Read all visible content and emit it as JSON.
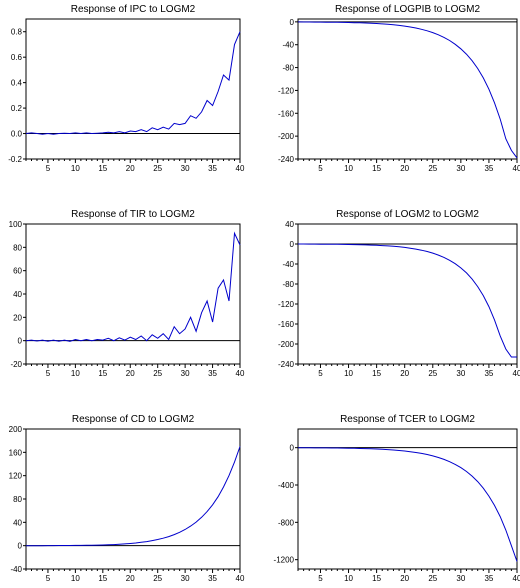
{
  "chart_data": [
    {
      "type": "line",
      "title": "Response of IPC to LOGM2",
      "xlim": [
        1,
        40
      ],
      "ylim": [
        -0.2,
        0.9
      ],
      "yticks": [
        "-0.2",
        "0.0",
        "0.2",
        "0.4",
        "0.6",
        "0.8"
      ],
      "ytick_values": [
        -0.2,
        0.0,
        0.2,
        0.4,
        0.6,
        0.8
      ],
      "xticks": [
        "5",
        "10",
        "15",
        "20",
        "25",
        "30",
        "35",
        "40"
      ],
      "xtick_values": [
        5,
        10,
        15,
        20,
        25,
        30,
        35,
        40
      ],
      "zero_line": true,
      "series_color": "#0000cc",
      "x": [
        1,
        2,
        3,
        4,
        5,
        6,
        7,
        8,
        9,
        10,
        11,
        12,
        13,
        14,
        15,
        16,
        17,
        18,
        19,
        20,
        21,
        22,
        23,
        24,
        25,
        26,
        27,
        28,
        29,
        30,
        31,
        32,
        33,
        34,
        35,
        36,
        37,
        38,
        39,
        40
      ],
      "values": [
        0.0,
        0.005,
        0.0,
        -0.005,
        0.0,
        -0.005,
        0.0,
        0.003,
        0.0,
        0.005,
        0.0,
        0.005,
        0.0,
        0.003,
        0.005,
        0.01,
        0.005,
        0.015,
        0.005,
        0.02,
        0.015,
        0.03,
        0.015,
        0.045,
        0.03,
        0.05,
        0.035,
        0.08,
        0.07,
        0.08,
        0.14,
        0.12,
        0.17,
        0.26,
        0.22,
        0.33,
        0.46,
        0.42,
        0.7,
        0.8
      ]
    },
    {
      "type": "line",
      "title": "Response of LOGPIB to LOGM2",
      "xlim": [
        1,
        40
      ],
      "ylim": [
        -240,
        5
      ],
      "yticks": [
        "-240",
        "-200",
        "-160",
        "-120",
        "-80",
        "-40",
        "0"
      ],
      "ytick_values": [
        -240,
        -200,
        -160,
        -120,
        -80,
        -40,
        0
      ],
      "xticks": [
        "5",
        "10",
        "15",
        "20",
        "25",
        "30",
        "35",
        "40"
      ],
      "xtick_values": [
        5,
        10,
        15,
        20,
        25,
        30,
        35,
        40
      ],
      "zero_line": true,
      "series_color": "#0000cc",
      "x": [
        1,
        2,
        3,
        4,
        5,
        6,
        7,
        8,
        9,
        10,
        11,
        12,
        13,
        14,
        15,
        16,
        17,
        18,
        19,
        20,
        21,
        22,
        23,
        24,
        25,
        26,
        27,
        28,
        29,
        30,
        31,
        32,
        33,
        34,
        35,
        36,
        37,
        38,
        39,
        40
      ],
      "values": [
        0,
        -0.2,
        -0.3,
        -0.4,
        -0.5,
        -0.6,
        -0.7,
        -0.8,
        -1.0,
        -1.2,
        -1.4,
        -1.7,
        -2.0,
        -2.4,
        -2.9,
        -3.5,
        -4.2,
        -5.1,
        -6.2,
        -7.4,
        -9.0,
        -10.8,
        -13.0,
        -15.6,
        -18.8,
        -22.6,
        -27.2,
        -32.6,
        -39.2,
        -47.1,
        -56.6,
        -68.0,
        -81.7,
        -98.1,
        -117.9,
        -141.6,
        -170.1,
        -204.4,
        -225.0,
        -238.0
      ]
    },
    {
      "type": "line",
      "title": "Response of TIR to LOGM2",
      "xlim": [
        1,
        40
      ],
      "ylim": [
        -20,
        100
      ],
      "yticks": [
        "-20",
        "0",
        "20",
        "40",
        "60",
        "80",
        "100"
      ],
      "ytick_values": [
        -20,
        0,
        20,
        40,
        60,
        80,
        100
      ],
      "xticks": [
        "5",
        "10",
        "15",
        "20",
        "25",
        "30",
        "35",
        "40"
      ],
      "xtick_values": [
        5,
        10,
        15,
        20,
        25,
        30,
        35,
        40
      ],
      "zero_line": true,
      "series_color": "#0000cc",
      "x": [
        1,
        2,
        3,
        4,
        5,
        6,
        7,
        8,
        9,
        10,
        11,
        12,
        13,
        14,
        15,
        16,
        17,
        18,
        19,
        20,
        21,
        22,
        23,
        24,
        25,
        26,
        27,
        28,
        29,
        30,
        31,
        32,
        33,
        34,
        35,
        36,
        37,
        38,
        39,
        40
      ],
      "values": [
        0,
        0.5,
        -0.3,
        0.5,
        -0.5,
        0.5,
        -0.5,
        0.5,
        -0.5,
        1,
        0,
        1,
        0,
        1,
        0.5,
        2,
        0,
        2.5,
        0.5,
        3,
        1,
        4,
        0,
        5,
        2,
        6,
        1,
        12,
        6,
        10,
        20,
        8,
        24,
        34,
        16,
        45,
        52,
        34,
        92,
        82
      ]
    },
    {
      "type": "line",
      "title": "Response of LOGM2 to LOGM2",
      "xlim": [
        1,
        40
      ],
      "ylim": [
        -240,
        40
      ],
      "yticks": [
        "-240",
        "-200",
        "-160",
        "-120",
        "-80",
        "-40",
        "0",
        "40"
      ],
      "ytick_values": [
        -240,
        -200,
        -160,
        -120,
        -80,
        -40,
        0,
        40
      ],
      "xticks": [
        "5",
        "10",
        "15",
        "20",
        "25",
        "30",
        "35",
        "40"
      ],
      "xtick_values": [
        5,
        10,
        15,
        20,
        25,
        30,
        35,
        40
      ],
      "zero_line": true,
      "series_color": "#0000cc",
      "x": [
        1,
        2,
        3,
        4,
        5,
        6,
        7,
        8,
        9,
        10,
        11,
        12,
        13,
        14,
        15,
        16,
        17,
        18,
        19,
        20,
        21,
        22,
        23,
        24,
        25,
        26,
        27,
        28,
        29,
        30,
        31,
        32,
        33,
        34,
        35,
        36,
        37,
        38,
        39,
        40
      ],
      "values": [
        0,
        0,
        -0.1,
        -0.2,
        -0.3,
        -0.4,
        -0.5,
        -0.6,
        -0.8,
        -1.0,
        -1.2,
        -1.5,
        -1.8,
        -2.2,
        -2.6,
        -3.2,
        -3.9,
        -4.7,
        -5.7,
        -6.9,
        -8.4,
        -10.2,
        -12.4,
        -15.0,
        -18.2,
        -22.1,
        -26.8,
        -32.5,
        -39.4,
        -47.8,
        -57.9,
        -70.2,
        -85.1,
        -103.2,
        -125.1,
        -151.7,
        -183.9,
        -210.0,
        -226.0,
        -226.0
      ]
    },
    {
      "type": "line",
      "title": "Response of CD to LOGM2",
      "xlim": [
        1,
        40
      ],
      "ylim": [
        -40,
        200
      ],
      "yticks": [
        "-40",
        "0",
        "40",
        "80",
        "120",
        "160",
        "200"
      ],
      "ytick_values": [
        -40,
        0,
        40,
        80,
        120,
        160,
        200
      ],
      "xticks": [
        "5",
        "10",
        "15",
        "20",
        "25",
        "30",
        "35",
        "40"
      ],
      "xtick_values": [
        5,
        10,
        15,
        20,
        25,
        30,
        35,
        40
      ],
      "zero_line": true,
      "series_color": "#0000cc",
      "x": [
        1,
        2,
        3,
        4,
        5,
        6,
        7,
        8,
        9,
        10,
        11,
        12,
        13,
        14,
        15,
        16,
        17,
        18,
        19,
        20,
        21,
        22,
        23,
        24,
        25,
        26,
        27,
        28,
        29,
        30,
        31,
        32,
        33,
        34,
        35,
        36,
        37,
        38,
        39,
        40
      ],
      "values": [
        0,
        0,
        0,
        0,
        0.1,
        0.1,
        0.2,
        0.2,
        0.3,
        0.4,
        0.5,
        0.6,
        0.8,
        1.0,
        1.2,
        1.5,
        1.9,
        2.4,
        3.0,
        3.7,
        4.6,
        5.7,
        7.0,
        8.6,
        10.5,
        12.8,
        15.6,
        19.0,
        23.0,
        27.8,
        33.5,
        40.4,
        48.6,
        58.4,
        70.1,
        84.0,
        100.5,
        120.1,
        143.3,
        170.0
      ]
    },
    {
      "type": "line",
      "title": "Response of TCER to LOGM2",
      "xlim": [
        1,
        40
      ],
      "ylim": [
        -1300,
        200
      ],
      "yticks": [
        "-1200",
        "-800",
        "-400",
        "0"
      ],
      "ytick_values": [
        -1200,
        -800,
        -400,
        0
      ],
      "xticks": [
        "5",
        "10",
        "15",
        "20",
        "25",
        "30",
        "35",
        "40"
      ],
      "xtick_values": [
        5,
        10,
        15,
        20,
        25,
        30,
        35,
        40
      ],
      "zero_line": true,
      "series_color": "#0000cc",
      "x": [
        1,
        2,
        3,
        4,
        5,
        6,
        7,
        8,
        9,
        10,
        11,
        12,
        13,
        14,
        15,
        16,
        17,
        18,
        19,
        20,
        21,
        22,
        23,
        24,
        25,
        26,
        27,
        28,
        29,
        30,
        31,
        32,
        33,
        34,
        35,
        36,
        37,
        38,
        39,
        40
      ],
      "values": [
        0,
        -1,
        -1.5,
        -2,
        -2.5,
        -3,
        -3.5,
        -4,
        -5,
        -6,
        -7,
        -8.5,
        -10,
        -12,
        -14.5,
        -17.5,
        -21,
        -25,
        -30,
        -36,
        -43,
        -51.5,
        -61.5,
        -73.5,
        -88,
        -105,
        -125.5,
        -150,
        -179,
        -214,
        -255.5,
        -305,
        -364,
        -434.5,
        -518.5,
        -619,
        -739,
        -882,
        -1050,
        -1220
      ]
    }
  ]
}
